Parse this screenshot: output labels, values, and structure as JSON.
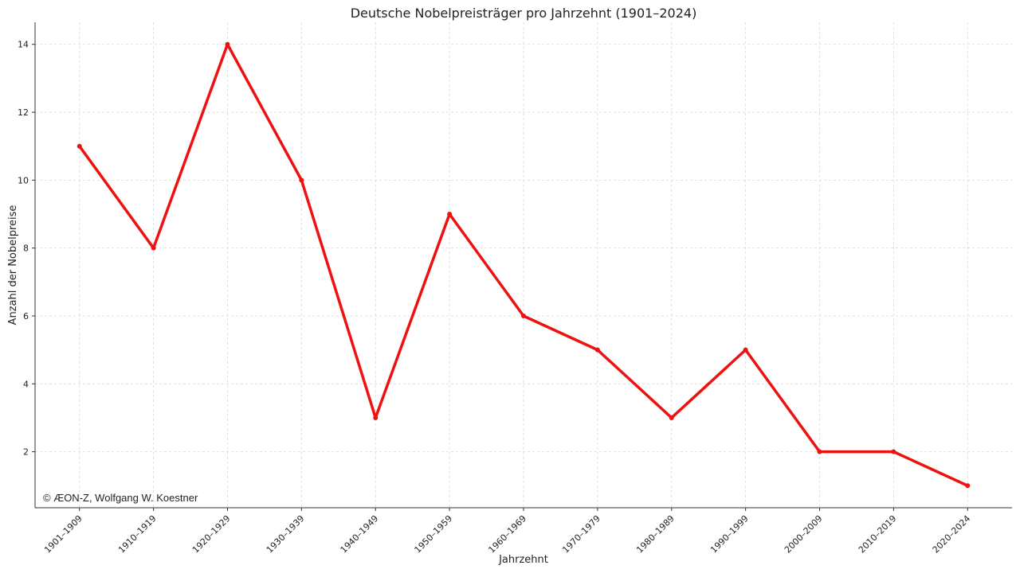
{
  "chart_data": {
    "type": "line",
    "title": "Deutsche Nobelpreisträger pro Jahrzehnt (1901–2024)",
    "xlabel": "Jahrzehnt",
    "ylabel": "Anzahl der Nobelpreise",
    "annotation": "© ÆON-Z, Wolfgang W. Koestner",
    "categories": [
      "1901–1909",
      "1910–1919",
      "1920–1929",
      "1930–1939",
      "1940–1949",
      "1950–1959",
      "1960–1969",
      "1970–1979",
      "1980–1989",
      "1990–1999",
      "2000–2009",
      "2010–2019",
      "2020–2024"
    ],
    "series": [
      {
        "name": "Deutsche Nobelpreisträger",
        "color": "#ee1111",
        "values": [
          11,
          8,
          14,
          10,
          3,
          9,
          6,
          5,
          3,
          5,
          2,
          2,
          1
        ]
      }
    ],
    "ylim": [
      0.35,
      14.65
    ],
    "yticks": [
      2,
      4,
      6,
      8,
      10,
      12,
      14
    ],
    "grid": true
  }
}
